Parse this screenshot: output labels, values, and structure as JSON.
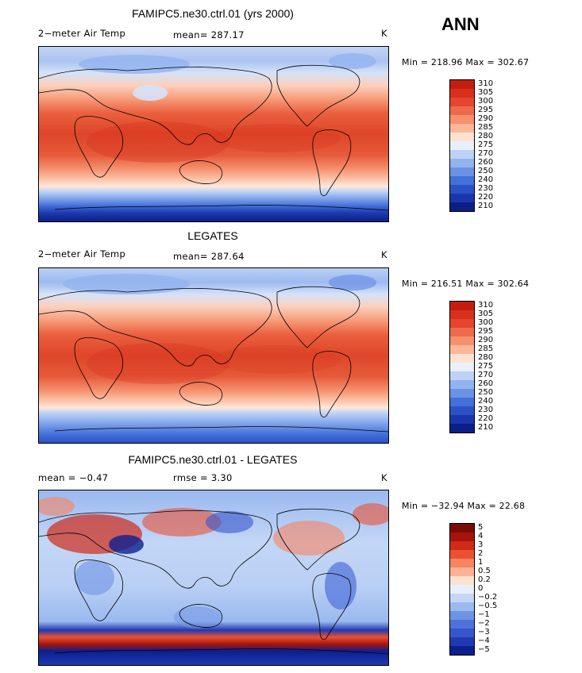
{
  "season": "ANN",
  "units": "K",
  "palette_temp": [
    "#c41d10",
    "#d8301d",
    "#e4452e",
    "#ee6a4c",
    "#f7906d",
    "#fcb799",
    "#fde2d2",
    "#e9f0fb",
    "#bdd2f6",
    "#93b3ef",
    "#6c92e6",
    "#4470d9",
    "#2a52c6",
    "#1937aa",
    "#0c1f86"
  ],
  "palette_diff": [
    "#7a0c07",
    "#a8140c",
    "#cf2b18",
    "#ea5133",
    "#f78462",
    "#fdb195",
    "#fde2d2",
    "#e9f0fb",
    "#c3d6f6",
    "#9ab9ef",
    "#6f93e4",
    "#4f72da",
    "#3656cc",
    "#2139b0",
    "#0d1f8e"
  ],
  "panels": [
    {
      "id": "model",
      "title": "FAMIPC5.ne30.ctrl.01 (yrs 2000)",
      "left_label": "2−meter Air Temp",
      "center_label": "mean=  287.17",
      "right_label": "K",
      "stats": "Min = 218.96 Max = 302.67",
      "colorbar_ticks": [
        "310",
        "305",
        "300",
        "295",
        "290",
        "285",
        "280",
        "275",
        "270",
        "260",
        "250",
        "240",
        "230",
        "220",
        "210"
      ]
    },
    {
      "id": "obs",
      "title": "LEGATES",
      "left_label": "2−meter Air Temp",
      "center_label": "mean=  287.64",
      "right_label": "K",
      "stats": "Min = 216.51 Max = 302.64",
      "colorbar_ticks": [
        "310",
        "305",
        "300",
        "295",
        "290",
        "285",
        "280",
        "275",
        "270",
        "260",
        "250",
        "240",
        "230",
        "220",
        "210"
      ]
    },
    {
      "id": "diff",
      "title": "FAMIPC5.ne30.ctrl.01 - LEGATES",
      "left_label": "mean =   −0.47",
      "center_label": "rmse =    3.30",
      "right_label": "K",
      "stats": "Min = −32.94 Max =  22.68",
      "colorbar_ticks": [
        "5",
        "4",
        "3",
        "2",
        "1",
        "0.5",
        "0.2",
        "0",
        "−0.2",
        "−0.5",
        "−1",
        "−2",
        "−3",
        "−4",
        "−5"
      ]
    }
  ]
}
